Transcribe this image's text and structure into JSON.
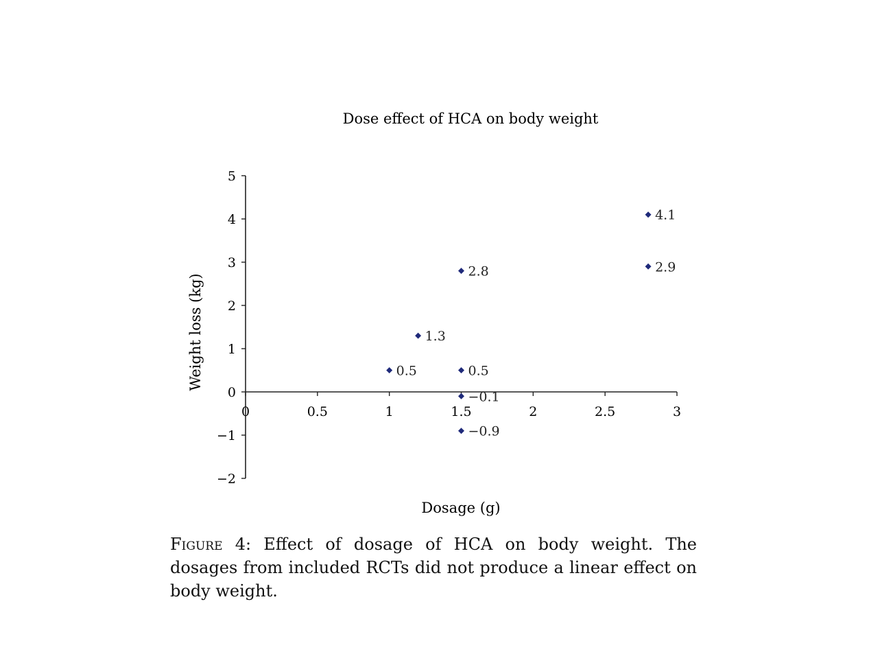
{
  "chart_data": {
    "type": "scatter",
    "title": "Dose effect of HCA on body weight",
    "xlabel": "Dosage (g)",
    "ylabel": "Weight loss (kg)",
    "xlim": [
      0,
      3
    ],
    "ylim": [
      -2,
      5
    ],
    "x_ticks": [
      0,
      0.5,
      1,
      1.5,
      2,
      2.5,
      3
    ],
    "x_tick_labels": [
      "0",
      "0.5",
      "1",
      "1.5",
      "2",
      "2.5",
      "3"
    ],
    "y_ticks": [
      -2,
      -1,
      0,
      1,
      2,
      3,
      4,
      5
    ],
    "y_tick_labels": [
      "−2",
      "−1",
      "0",
      "1",
      "2",
      "3",
      "4",
      "5"
    ],
    "grid": false,
    "marker_color": "#1f2a7a",
    "points": [
      {
        "x": 1.0,
        "y": 0.5,
        "label": "0.5"
      },
      {
        "x": 1.2,
        "y": 1.3,
        "label": "1.3"
      },
      {
        "x": 1.5,
        "y": 2.8,
        "label": "2.8"
      },
      {
        "x": 1.5,
        "y": 0.5,
        "label": "0.5"
      },
      {
        "x": 1.5,
        "y": -0.1,
        "label": "−0.1"
      },
      {
        "x": 1.5,
        "y": -0.9,
        "label": "−0.9"
      },
      {
        "x": 2.8,
        "y": 4.1,
        "label": "4.1"
      },
      {
        "x": 2.8,
        "y": 2.9,
        "label": "2.9"
      }
    ]
  },
  "caption": {
    "figure_label": "Figure 4:",
    "text": "Effect of dosage of HCA on body weight. The dosages from included RCTs did not produce a linear effect on body weight."
  }
}
